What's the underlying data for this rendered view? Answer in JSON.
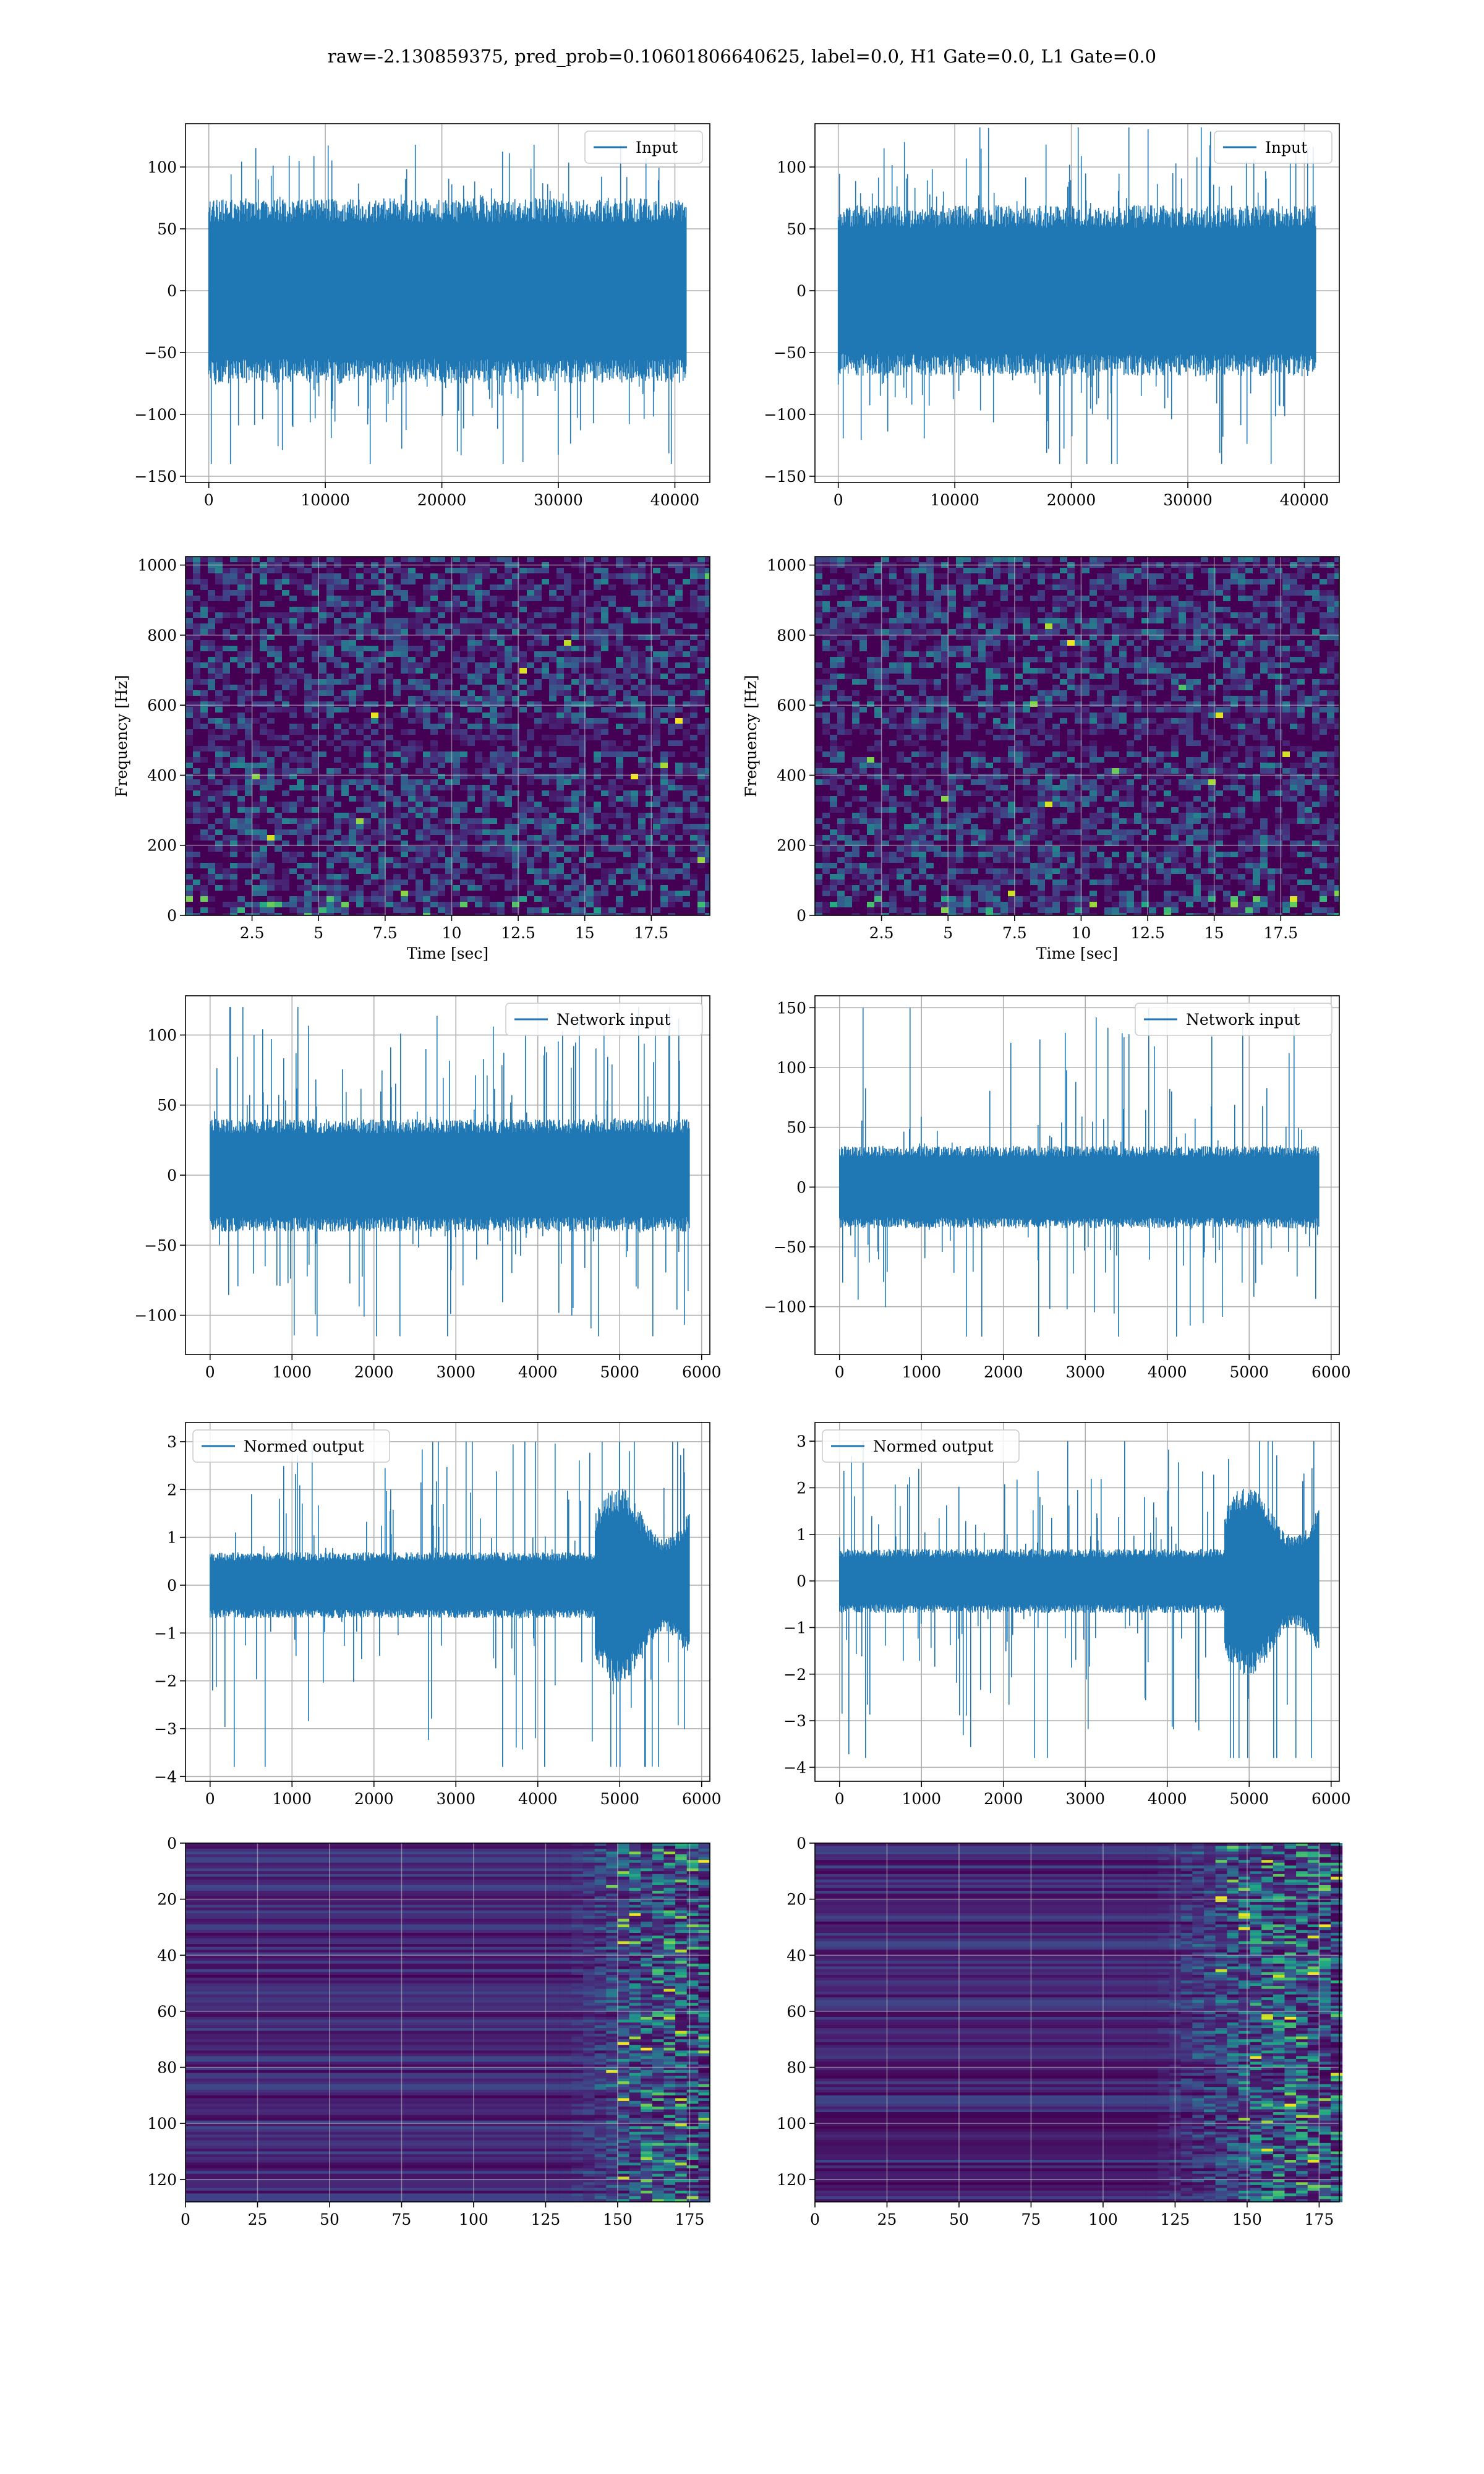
{
  "figure": {
    "title": "raw=-2.130859375, pred_prob=0.10601806640625, label=0.0, H1 Gate=0.0, L1 Gate=0.0"
  },
  "colors": {
    "line": "#1f77b4",
    "grid": "#b0b0b0",
    "viridis_dark": "#440154",
    "viridis_blue": "#3b528b",
    "viridis_teal": "#21918c",
    "viridis_green": "#5ec962",
    "viridis_yellow": "#fde725"
  },
  "chart_data": [
    {
      "id": "input-left",
      "type": "line",
      "series": [
        {
          "name": "Input"
        }
      ],
      "legend": "upper right",
      "xlim": [
        -2000,
        43000
      ],
      "ylim": [
        -155,
        135
      ],
      "xticks": [
        0,
        10000,
        20000,
        30000,
        40000
      ],
      "yticks": [
        -150,
        -100,
        -50,
        0,
        50,
        100
      ],
      "x_range": [
        0,
        40960
      ],
      "envelope": {
        "core": [
          -65,
          65
        ],
        "extreme": [
          -140,
          118
        ]
      },
      "grid": true
    },
    {
      "id": "input-right",
      "type": "line",
      "series": [
        {
          "name": "Input"
        }
      ],
      "legend": "upper right",
      "xlim": [
        -2000,
        43000
      ],
      "ylim": [
        -155,
        135
      ],
      "xticks": [
        0,
        10000,
        20000,
        30000,
        40000
      ],
      "yticks": [
        -150,
        -100,
        -50,
        0,
        50,
        100
      ],
      "x_range": [
        0,
        40960
      ],
      "envelope": {
        "core": [
          -60,
          60
        ],
        "extreme": [
          -140,
          132
        ]
      },
      "grid": true
    },
    {
      "id": "spec-left",
      "type": "heatmap",
      "xlabel": "Time [sec]",
      "ylabel": "Frequency [Hz]",
      "xlim": [
        0,
        19.7
      ],
      "ylim": [
        0,
        1024
      ],
      "xticks": [
        2.5,
        5.0,
        7.5,
        10.0,
        12.5,
        15.0,
        17.5
      ],
      "yticks": [
        0,
        200,
        400,
        600,
        800,
        1000
      ],
      "grid": true
    },
    {
      "id": "spec-right",
      "type": "heatmap",
      "xlabel": "Time [sec]",
      "ylabel": "Frequency [Hz]",
      "xlim": [
        0,
        19.7
      ],
      "ylim": [
        0,
        1024
      ],
      "xticks": [
        2.5,
        5.0,
        7.5,
        10.0,
        12.5,
        15.0,
        17.5
      ],
      "yticks": [
        0,
        200,
        400,
        600,
        800,
        1000
      ],
      "grid": true
    },
    {
      "id": "net-left",
      "type": "line",
      "series": [
        {
          "name": "Network input"
        }
      ],
      "legend": "upper right",
      "xlim": [
        -300,
        6100
      ],
      "ylim": [
        -128,
        128
      ],
      "xticks": [
        0,
        1000,
        2000,
        3000,
        4000,
        5000,
        6000
      ],
      "yticks": [
        -100,
        -50,
        0,
        50,
        100
      ],
      "x_range": [
        0,
        5850
      ],
      "envelope": {
        "core": [
          -35,
          35
        ],
        "extreme": [
          -115,
          120
        ]
      },
      "grid": true
    },
    {
      "id": "net-right",
      "type": "line",
      "series": [
        {
          "name": "Network input"
        }
      ],
      "legend": "upper right",
      "xlim": [
        -300,
        6100
      ],
      "ylim": [
        -140,
        160
      ],
      "xticks": [
        0,
        1000,
        2000,
        3000,
        4000,
        5000,
        6000
      ],
      "yticks": [
        -100,
        -50,
        0,
        50,
        100,
        150
      ],
      "x_range": [
        0,
        5850
      ],
      "envelope": {
        "core": [
          -30,
          30
        ],
        "extreme": [
          -125,
          150
        ]
      },
      "grid": true
    },
    {
      "id": "norm-left",
      "type": "line",
      "series": [
        {
          "name": "Normed output"
        }
      ],
      "legend": "upper left",
      "xlim": [
        -300,
        6100
      ],
      "ylim": [
        -4.1,
        3.4
      ],
      "xticks": [
        0,
        1000,
        2000,
        3000,
        4000,
        5000,
        6000
      ],
      "yticks": [
        -4,
        -3,
        -2,
        -1,
        0,
        1,
        2,
        3
      ],
      "x_range": [
        0,
        5850
      ],
      "burst_start": 4700,
      "envelope": {
        "core": [
          -0.6,
          0.6
        ],
        "extreme": [
          -3.8,
          3.0
        ]
      },
      "grid": true
    },
    {
      "id": "norm-right",
      "type": "line",
      "series": [
        {
          "name": "Normed output"
        }
      ],
      "legend": "upper left",
      "xlim": [
        -300,
        6100
      ],
      "ylim": [
        -4.3,
        3.4
      ],
      "xticks": [
        0,
        1000,
        2000,
        3000,
        4000,
        5000,
        6000
      ],
      "yticks": [
        -4,
        -3,
        -2,
        -1,
        0,
        1,
        2,
        3
      ],
      "x_range": [
        0,
        5850
      ],
      "burst_start": 4700,
      "envelope": {
        "core": [
          -0.6,
          0.6
        ],
        "extreme": [
          -3.8,
          3.0
        ]
      },
      "grid": true
    },
    {
      "id": "feat-left",
      "type": "heatmap",
      "xlim": [
        0,
        182
      ],
      "ylim": [
        128,
        0
      ],
      "xticks": [
        0,
        25,
        50,
        75,
        100,
        125,
        150,
        175
      ],
      "yticks": [
        0,
        20,
        40,
        60,
        80,
        100,
        120
      ],
      "rows": 128,
      "active_from": 145,
      "grid": true
    },
    {
      "id": "feat-right",
      "type": "heatmap",
      "xlim": [
        0,
        182
      ],
      "ylim": [
        128,
        0
      ],
      "xticks": [
        0,
        25,
        50,
        75,
        100,
        125,
        150,
        175
      ],
      "yticks": [
        0,
        20,
        40,
        60,
        80,
        100,
        120
      ],
      "rows": 128,
      "active_from": 130,
      "grid": true
    }
  ]
}
